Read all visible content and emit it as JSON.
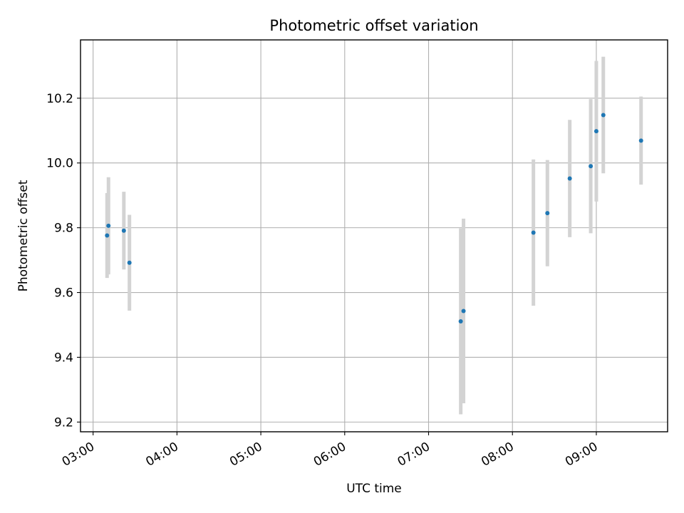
{
  "chart_data": {
    "type": "scatter",
    "title": "Photometric offset variation",
    "xlabel": "UTC time",
    "ylabel": "Photometric offset",
    "x_ticks": [
      "03:00",
      "04:00",
      "05:00",
      "06:00",
      "07:00",
      "08:00",
      "09:00"
    ],
    "y_ticks": [
      "9.2",
      "9.4",
      "9.6",
      "9.8",
      "10.0",
      "10.2"
    ],
    "xlim": [
      "02:51",
      "09:51"
    ],
    "ylim": [
      9.17,
      10.38
    ],
    "grid": true,
    "marker_color": "#1f77b4",
    "errorbar_color": "#d3d3d3",
    "series": [
      {
        "points": [
          {
            "x": "03:10",
            "y": 9.776,
            "err": 0.131
          },
          {
            "x": "03:11",
            "y": 9.806,
            "err": 0.15
          },
          {
            "x": "03:22",
            "y": 9.791,
            "err": 0.12
          },
          {
            "x": "03:26",
            "y": 9.692,
            "err": 0.148
          },
          {
            "x": "07:23",
            "y": 9.511,
            "err": 0.287
          },
          {
            "x": "07:25",
            "y": 9.543,
            "err": 0.285
          },
          {
            "x": "08:15",
            "y": 9.785,
            "err": 0.226
          },
          {
            "x": "08:25",
            "y": 9.845,
            "err": 0.164
          },
          {
            "x": "08:41",
            "y": 9.952,
            "err": 0.181
          },
          {
            "x": "08:56",
            "y": 9.99,
            "err": 0.207
          },
          {
            "x": "09:00",
            "y": 10.098,
            "err": 0.217
          },
          {
            "x": "09:05",
            "y": 10.148,
            "err": 0.18
          },
          {
            "x": "09:32",
            "y": 10.069,
            "err": 0.136
          }
        ]
      }
    ]
  }
}
